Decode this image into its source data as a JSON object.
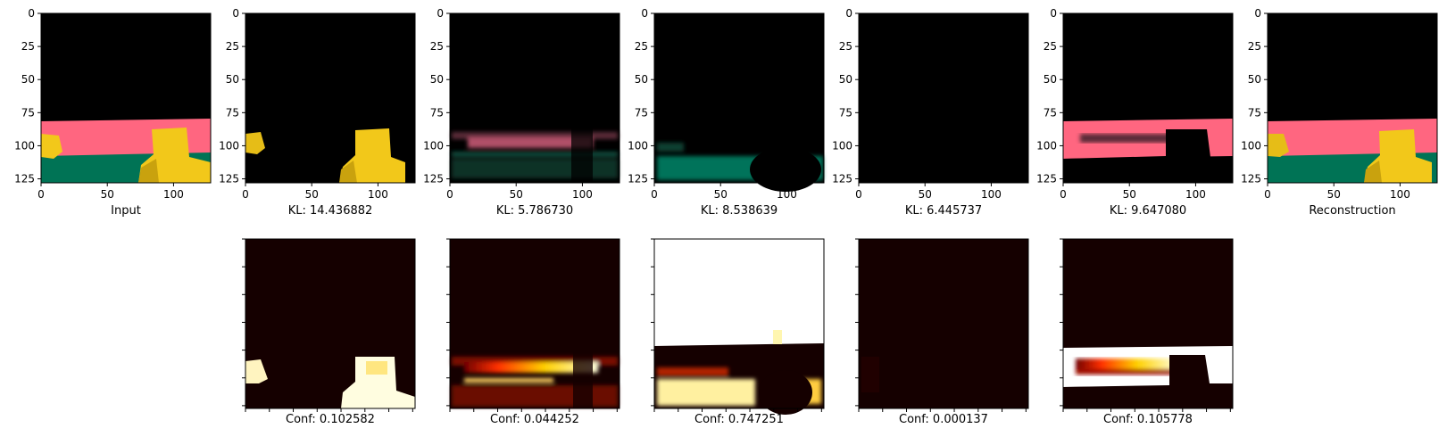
{
  "figure": {
    "top_panels": [
      {
        "name": "input",
        "caption": "Input"
      },
      {
        "name": "kl-slot-1",
        "caption": "KL: 14.436882"
      },
      {
        "name": "kl-slot-2",
        "caption": "KL: 5.786730"
      },
      {
        "name": "kl-slot-3",
        "caption": "KL: 8.538639"
      },
      {
        "name": "kl-slot-4",
        "caption": "KL: 6.445737"
      },
      {
        "name": "kl-slot-5",
        "caption": "KL: 9.647080"
      },
      {
        "name": "reconstruction",
        "caption": "Reconstruction"
      }
    ],
    "bottom_panels": [
      {
        "name": "conf-slot-1",
        "caption": "Conf: 0.102582"
      },
      {
        "name": "conf-slot-2",
        "caption": "Conf: 0.044252"
      },
      {
        "name": "conf-slot-3",
        "caption": "Conf: 0.747251"
      },
      {
        "name": "conf-slot-4",
        "caption": "Conf: 0.000137"
      },
      {
        "name": "conf-slot-5",
        "caption": "Conf: 0.105778"
      }
    ],
    "axis": {
      "x_ticks": [
        "0",
        "50",
        "100"
      ],
      "y_ticks": [
        "0",
        "25",
        "50",
        "75",
        "100",
        "125"
      ]
    },
    "colors": {
      "pink": "#ff6680",
      "teal": "#007355",
      "yellow": "#f2c81a",
      "heat_dark": "#150000",
      "heat_hot": "#ffffff"
    }
  }
}
